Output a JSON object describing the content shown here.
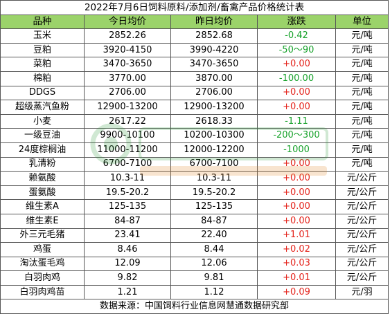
{
  "title": "2022年7月6日饲料原料/添加剂/畜禽产品价格统计表",
  "columns": [
    "品种",
    "今日均价",
    "昨日均价",
    "涨跌",
    "单位"
  ],
  "rows": [
    {
      "name": "玉米",
      "today": "2852.26",
      "yesterday": "2852.68",
      "change": "-0.42",
      "unit": "元/吨",
      "trend": "down"
    },
    {
      "name": "豆粕",
      "today": "3920-4150",
      "yesterday": "3990-4220",
      "change": "-50～90",
      "unit": "元/吨",
      "trend": "down"
    },
    {
      "name": "菜粕",
      "today": "3470-3650",
      "yesterday": "3470-3650",
      "change": "+0.00",
      "unit": "元/吨",
      "trend": "up"
    },
    {
      "name": "棉粕",
      "today": "3770.00",
      "yesterday": "3870.00",
      "change": "-100.00",
      "unit": "元/吨",
      "trend": "down"
    },
    {
      "name": "DDGS",
      "today": "2706.00",
      "yesterday": "2706.00",
      "change": "+0.00",
      "unit": "元/吨",
      "trend": "up"
    },
    {
      "name": "超级蒸汽鱼粉",
      "today": "12900-13200",
      "yesterday": "12900-13200",
      "change": "+0.00",
      "unit": "元/吨",
      "trend": "up"
    },
    {
      "name": "小麦",
      "today": "2617.22",
      "yesterday": "2618.33",
      "change": "-1.11",
      "unit": "元/吨",
      "trend": "down"
    },
    {
      "name": "一级豆油",
      "today": "9900-10100",
      "yesterday": "10200-10300",
      "change": "-200～300",
      "unit": "元/吨",
      "trend": "down"
    },
    {
      "name": "24度棕榈油",
      "today": "11000-11200",
      "yesterday": "12000-12200",
      "change": "-1000",
      "unit": "元/吨",
      "trend": "down"
    },
    {
      "name": "乳清粉",
      "today": "6700-7100",
      "yesterday": "6700-7100",
      "change": "+0.00",
      "unit": "元/吨",
      "trend": "up"
    },
    {
      "name": "赖氨酸",
      "today": "10.3-11",
      "yesterday": "10.3-11",
      "change": "+0.00",
      "unit": "元/公斤",
      "trend": "up"
    },
    {
      "name": "蛋氨酸",
      "today": "19.5-20.2",
      "yesterday": "19.5-20.2",
      "change": "+0.00",
      "unit": "元/公斤",
      "trend": "up"
    },
    {
      "name": "维生素A",
      "today": "125-135",
      "yesterday": "125-135",
      "change": "+0.00",
      "unit": "元/公斤",
      "trend": "up"
    },
    {
      "name": "维生素E",
      "today": "84-87",
      "yesterday": "84-87",
      "change": "+0.00",
      "unit": "元/公斤",
      "trend": "up"
    },
    {
      "name": "外三元毛猪",
      "today": "23.41",
      "yesterday": "22.40",
      "change": "+1.01",
      "unit": "元/公斤",
      "trend": "up"
    },
    {
      "name": "鸡蛋",
      "today": "8.46",
      "yesterday": "8.44",
      "change": "+0.02",
      "unit": "元/公斤",
      "trend": "up"
    },
    {
      "name": "淘汰蛋毛鸡",
      "today": "12.09",
      "yesterday": "12.06",
      "change": "+0.03",
      "unit": "元/公斤",
      "trend": "up"
    },
    {
      "name": "白羽肉鸡",
      "today": "9.82",
      "yesterday": "9.81",
      "change": "+0.01",
      "unit": "元/公斤",
      "trend": "up"
    },
    {
      "name": "白羽肉鸡苗",
      "today": "1.21",
      "yesterday": "1.12",
      "change": "+0.09",
      "unit": "元/羽",
      "trend": "up"
    }
  ],
  "footer": "数据来源：中国饲料行业信息网慧通数据研究部",
  "colors": {
    "header_bg": "#9bd36a",
    "up": "#e4231b",
    "down": "#17a22b",
    "border": "#555555"
  }
}
